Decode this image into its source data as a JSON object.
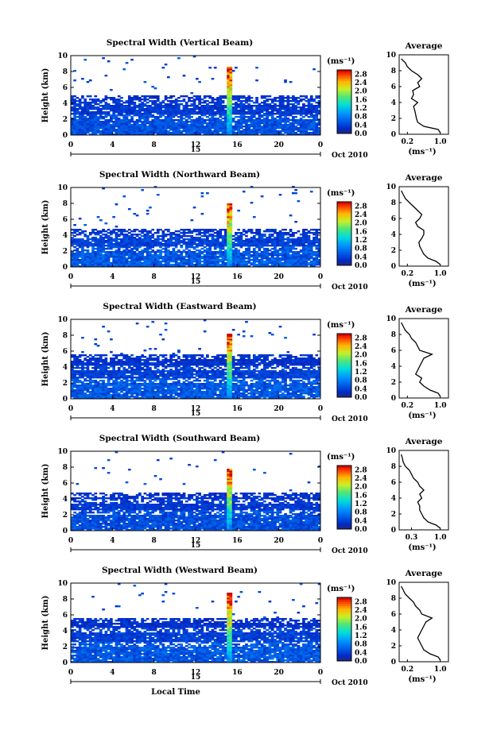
{
  "chart_data": [
    {
      "type": "heatmap",
      "title": "Spectral Width (Vertical Beam)",
      "ylabel": "Height (km)",
      "xlabel": "",
      "xlim": [
        0,
        24
      ],
      "ylim": [
        0,
        10
      ],
      "x_ticks": [
        "0",
        "4",
        "8",
        "12",
        "16",
        "20",
        "0"
      ],
      "y_ticks": [
        "0",
        "2",
        "4",
        "6",
        "8",
        "10"
      ],
      "date_day": "15",
      "date_label": "Oct 2010",
      "colorbar": {
        "unit": "(ms⁻¹)",
        "ticks": [
          "0.0",
          "0.4",
          "0.8",
          "1.2",
          "1.6",
          "2.0",
          "2.4",
          "2.8"
        ],
        "range": [
          0,
          3.0
        ]
      },
      "spike": {
        "time_start": 14.8,
        "time_end": 15.3,
        "top_km": 8.5
      },
      "layers": [
        {
          "bottom_km": 0.0,
          "top_km": 2.5,
          "width": 0.5
        },
        {
          "bottom_km": 2.5,
          "top_km": 4.3,
          "width": 0.35
        },
        {
          "bottom_km": 4.3,
          "top_km": 5.0,
          "width": 0.3
        }
      ],
      "profile": {
        "title": "Average",
        "xlabel": "(ms⁻¹)",
        "x_ticks": [
          "0.2",
          "1.0"
        ],
        "xlim": [
          0,
          1.2
        ],
        "height_km": [
          0.2,
          0.6,
          1.0,
          1.5,
          2.0,
          2.5,
          3.0,
          3.5,
          4.0,
          4.5,
          5.0,
          5.5,
          6.0,
          6.5,
          7.0,
          7.5,
          8.0,
          8.5,
          9.0,
          9.5
        ],
        "width": [
          1.0,
          0.95,
          0.6,
          0.45,
          0.42,
          0.4,
          0.38,
          0.35,
          0.45,
          0.3,
          0.35,
          0.33,
          0.5,
          0.45,
          0.55,
          0.45,
          0.3,
          0.2,
          0.15,
          0.05
        ]
      }
    },
    {
      "type": "heatmap",
      "title": "Spectral Width (Northward Beam)",
      "ylabel": "Height (km)",
      "xlabel": "",
      "xlim": [
        0,
        24
      ],
      "ylim": [
        0,
        10
      ],
      "x_ticks": [
        "0",
        "4",
        "8",
        "12",
        "16",
        "20",
        "0"
      ],
      "y_ticks": [
        "0",
        "2",
        "4",
        "6",
        "8",
        "10"
      ],
      "date_day": "15",
      "date_label": "Oct 2010",
      "colorbar": {
        "unit": "(ms⁻¹)",
        "ticks": [
          "0.0",
          "0.4",
          "0.8",
          "1.2",
          "1.6",
          "2.0",
          "2.4",
          "2.8"
        ],
        "range": [
          0,
          3.0
        ]
      },
      "spike": {
        "time_start": 14.8,
        "time_end": 15.3,
        "top_km": 8.0
      },
      "layers": [
        {
          "bottom_km": 0.0,
          "top_km": 2.5,
          "width": 0.55
        },
        {
          "bottom_km": 2.5,
          "top_km": 4.2,
          "width": 0.4
        },
        {
          "bottom_km": 4.2,
          "top_km": 4.8,
          "width": 0.3
        }
      ],
      "profile": {
        "title": "Average",
        "xlabel": "(ms⁻¹)",
        "x_ticks": [
          "0.2",
          "1.0"
        ],
        "xlim": [
          0,
          1.2
        ],
        "height_km": [
          0.2,
          0.6,
          1.0,
          1.5,
          2.0,
          2.5,
          3.0,
          3.5,
          4.0,
          4.5,
          5.0,
          5.5,
          6.0,
          6.5,
          7.0,
          7.5,
          8.0,
          8.5,
          9.0,
          9.5
        ],
        "width": [
          1.0,
          0.9,
          0.7,
          0.6,
          0.55,
          0.5,
          0.48,
          0.55,
          0.6,
          0.6,
          0.45,
          0.4,
          0.5,
          0.55,
          0.45,
          0.35,
          0.25,
          0.15,
          0.1,
          0.05
        ]
      }
    },
    {
      "type": "heatmap",
      "title": "Spectral Width (Eastward Beam)",
      "ylabel": "Height (km)",
      "xlabel": "",
      "xlim": [
        0,
        24
      ],
      "ylim": [
        0,
        10
      ],
      "x_ticks": [
        "0",
        "4",
        "8",
        "12",
        "16",
        "20",
        "0"
      ],
      "y_ticks": [
        "0",
        "2",
        "4",
        "6",
        "8",
        "10"
      ],
      "date_day": "15",
      "date_label": "Oct 2010",
      "colorbar": {
        "unit": "(ms⁻¹)",
        "ticks": [
          "0.0",
          "0.4",
          "0.8",
          "1.2",
          "1.6",
          "2.0",
          "2.4",
          "2.8"
        ],
        "range": [
          0,
          3.0
        ]
      },
      "spike": {
        "time_start": 14.8,
        "time_end": 15.3,
        "top_km": 8.2
      },
      "layers": [
        {
          "bottom_km": 0.0,
          "top_km": 2.5,
          "width": 0.55
        },
        {
          "bottom_km": 2.5,
          "top_km": 4.2,
          "width": 0.4
        },
        {
          "bottom_km": 4.2,
          "top_km": 5.5,
          "width": 0.3
        }
      ],
      "profile": {
        "title": "Average",
        "xlabel": "(ms⁻¹)",
        "x_ticks": [
          "0.2",
          "1.0"
        ],
        "xlim": [
          0,
          1.2
        ],
        "height_km": [
          0.2,
          0.6,
          1.0,
          1.5,
          2.0,
          2.5,
          3.0,
          3.5,
          4.0,
          4.5,
          5.0,
          5.5,
          6.0,
          6.5,
          7.0,
          7.5,
          8.0,
          8.5,
          9.0,
          9.5
        ],
        "width": [
          1.0,
          0.95,
          0.75,
          0.6,
          0.5,
          0.55,
          0.4,
          0.45,
          0.5,
          0.55,
          0.6,
          0.8,
          0.5,
          0.45,
          0.4,
          0.3,
          0.25,
          0.15,
          0.1,
          0.05
        ]
      }
    },
    {
      "type": "heatmap",
      "title": "Spectral Width (Southward Beam)",
      "ylabel": "Height (km)",
      "xlabel": "",
      "xlim": [
        0,
        24
      ],
      "ylim": [
        0,
        10
      ],
      "x_ticks": [
        "0",
        "4",
        "8",
        "12",
        "16",
        "20",
        "0"
      ],
      "y_ticks": [
        "0",
        "2",
        "4",
        "6",
        "8",
        "10"
      ],
      "date_day": "15",
      "date_label": "Oct 2010",
      "colorbar": {
        "unit": "(ms⁻¹)",
        "ticks": [
          "0.0",
          "0.4",
          "0.8",
          "1.2",
          "1.6",
          "2.0",
          "2.4",
          "2.8"
        ],
        "range": [
          0,
          3.0
        ]
      },
      "spike": {
        "time_start": 14.8,
        "time_end": 15.3,
        "top_km": 7.8
      },
      "layers": [
        {
          "bottom_km": 0.0,
          "top_km": 2.5,
          "width": 0.5
        },
        {
          "bottom_km": 2.5,
          "top_km": 4.0,
          "width": 0.35
        },
        {
          "bottom_km": 4.0,
          "top_km": 4.8,
          "width": 0.3
        }
      ],
      "profile": {
        "title": "Average",
        "xlabel": "(ms⁻¹)",
        "x_ticks": [
          "0.3",
          "1.0"
        ],
        "xlim": [
          0,
          1.2
        ],
        "height_km": [
          0.2,
          0.6,
          1.0,
          1.5,
          2.0,
          2.5,
          3.0,
          3.5,
          4.0,
          4.5,
          5.0,
          5.5,
          6.0,
          6.5,
          7.0,
          7.5,
          8.0,
          8.5,
          9.0,
          9.5
        ],
        "width": [
          1.0,
          0.9,
          0.7,
          0.6,
          0.55,
          0.5,
          0.5,
          0.45,
          0.55,
          0.5,
          0.6,
          0.5,
          0.45,
          0.35,
          0.3,
          0.25,
          0.15,
          0.1,
          0.08,
          0.05
        ]
      }
    },
    {
      "type": "heatmap",
      "title": "Spectral Width (Westward Beam)",
      "ylabel": "Height (km)",
      "xlabel": "Local Time",
      "xlim": [
        0,
        24
      ],
      "ylim": [
        0,
        10
      ],
      "x_ticks": [
        "0",
        "4",
        "8",
        "12",
        "16",
        "20",
        "0"
      ],
      "y_ticks": [
        "0",
        "2",
        "4",
        "6",
        "8",
        "10"
      ],
      "date_day": "15",
      "date_label": "Oct 2010",
      "colorbar": {
        "unit": "(ms⁻¹)",
        "ticks": [
          "0.0",
          "0.4",
          "0.8",
          "1.2",
          "1.6",
          "2.0",
          "2.4",
          "2.8"
        ],
        "range": [
          0,
          3.0
        ]
      },
      "spike": {
        "time_start": 14.8,
        "time_end": 15.3,
        "top_km": 8.7
      },
      "layers": [
        {
          "bottom_km": 0.0,
          "top_km": 2.5,
          "width": 0.55
        },
        {
          "bottom_km": 2.5,
          "top_km": 4.3,
          "width": 0.4
        },
        {
          "bottom_km": 4.3,
          "top_km": 5.5,
          "width": 0.3
        }
      ],
      "profile": {
        "title": "Average",
        "xlabel": "(ms⁻¹)",
        "x_ticks": [
          "0.2",
          "1.0"
        ],
        "xlim": [
          0,
          1.2
        ],
        "height_km": [
          0.2,
          0.6,
          1.0,
          1.5,
          2.0,
          2.5,
          3.0,
          3.5,
          4.0,
          4.5,
          5.0,
          5.5,
          6.0,
          6.5,
          7.0,
          7.5,
          8.0,
          8.5,
          9.0,
          9.5
        ],
        "width": [
          1.0,
          0.95,
          0.75,
          0.6,
          0.55,
          0.5,
          0.45,
          0.5,
          0.55,
          0.6,
          0.65,
          0.8,
          0.55,
          0.5,
          0.4,
          0.35,
          0.25,
          0.15,
          0.1,
          0.05
        ]
      }
    }
  ]
}
